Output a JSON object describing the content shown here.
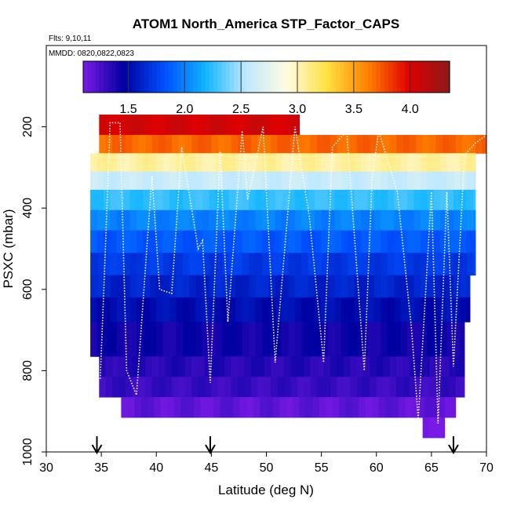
{
  "chart_data": {
    "type": "heatmap",
    "title": "ATOM1 North_America STP_Factor_CAPS",
    "flights_note": "Flts: 9,10,11",
    "dates_note": "MMDD: 0820,0822,0823",
    "xlabel": "Latitude (deg N)",
    "ylabel": "PSXC (mbar)",
    "xlim": [
      30,
      70
    ],
    "ylim": [
      1000,
      0
    ],
    "x_ticks": [
      30,
      35,
      40,
      45,
      50,
      55,
      60,
      65,
      70
    ],
    "x_tick_labels": [
      "30",
      "35",
      "40",
      "45",
      "50",
      "55",
      "60",
      "65",
      "70"
    ],
    "y_ticks": [
      200,
      400,
      600,
      800,
      1000
    ],
    "y_tick_labels": [
      "200",
      "400",
      "600",
      "800",
      "1000"
    ],
    "colorbar": {
      "range": [
        1.1,
        4.35
      ],
      "ticks": [
        1.5,
        2.0,
        2.5,
        3.0,
        3.5,
        4.0
      ],
      "tick_labels": [
        "1.5",
        "2.0",
        "2.5",
        "3.0",
        "3.5",
        "4.0"
      ],
      "colors": [
        "#7a1ae6",
        "#0000a0",
        "#0050ff",
        "#10b4ff",
        "#bfe8ff",
        "#fffce0",
        "#ffe040",
        "#ff8000",
        "#e00000",
        "#8c1a1a"
      ]
    },
    "bands": [
      {
        "p_top": 170,
        "p_bottom": 220,
        "x_start": 34.8,
        "x_end": 53,
        "value": 4.05
      },
      {
        "p_top": 220,
        "p_bottom": 265,
        "x_start": 34.8,
        "x_end": 70,
        "value": 3.7
      },
      {
        "p_top": 265,
        "p_bottom": 310,
        "x_start": 34.0,
        "x_end": 69,
        "value": 3.05
      },
      {
        "p_top": 310,
        "p_bottom": 355,
        "x_start": 34.0,
        "x_end": 69,
        "value": 2.6
      },
      {
        "p_top": 355,
        "p_bottom": 405,
        "x_start": 34.0,
        "x_end": 69,
        "value": 2.25
      },
      {
        "p_top": 405,
        "p_bottom": 455,
        "x_start": 34.0,
        "x_end": 69,
        "value": 2.0
      },
      {
        "p_top": 455,
        "p_bottom": 510,
        "x_start": 34.0,
        "x_end": 69,
        "value": 1.85
      },
      {
        "p_top": 510,
        "p_bottom": 565,
        "x_start": 34.0,
        "x_end": 69,
        "value": 1.72
      },
      {
        "p_top": 565,
        "p_bottom": 620,
        "x_start": 34.0,
        "x_end": 68.5,
        "value": 1.62
      },
      {
        "p_top": 620,
        "p_bottom": 680,
        "x_start": 34.0,
        "x_end": 68.5,
        "value": 1.52
      },
      {
        "p_top": 680,
        "p_bottom": 765,
        "x_start": 34.0,
        "x_end": 68.0,
        "value": 1.42
      },
      {
        "p_top": 765,
        "p_bottom": 815,
        "x_start": 34.8,
        "x_end": 68.0,
        "value": 1.35
      },
      {
        "p_top": 815,
        "p_bottom": 865,
        "x_start": 34.8,
        "x_end": 68.0,
        "value": 1.3
      },
      {
        "p_top": 865,
        "p_bottom": 915,
        "x_start": 36.8,
        "x_end": 67.2,
        "value": 1.18
      },
      {
        "p_top": 915,
        "p_bottom": 965,
        "x_start": 64.2,
        "x_end": 66.2,
        "value": 1.12
      }
    ],
    "flight_track": {
      "lat": [
        34.9,
        35.2,
        35.8,
        36.7,
        37.3,
        38.2,
        39.6,
        40.3,
        41.4,
        42.3,
        43.8,
        44.2,
        44.9,
        45.8,
        46.5,
        47.8,
        48.3,
        49.7,
        50.8,
        52.6,
        53.9,
        55.2,
        56.0,
        57.3,
        58.9,
        59.6,
        60.2,
        61.9,
        63.2,
        63.8,
        65.0,
        65.6,
        66.4,
        67.0,
        68.0,
        69.0,
        70.0
      ],
      "psxc": [
        820,
        620,
        190,
        190,
        800,
        860,
        320,
        600,
        610,
        250,
        500,
        480,
        830,
        260,
        680,
        210,
        380,
        200,
        780,
        200,
        420,
        780,
        250,
        210,
        800,
        330,
        210,
        360,
        700,
        920,
        360,
        930,
        360,
        790,
        270,
        240,
        220
      ]
    },
    "arrows_lat": [
      34.6,
      44.9,
      67.0
    ]
  }
}
